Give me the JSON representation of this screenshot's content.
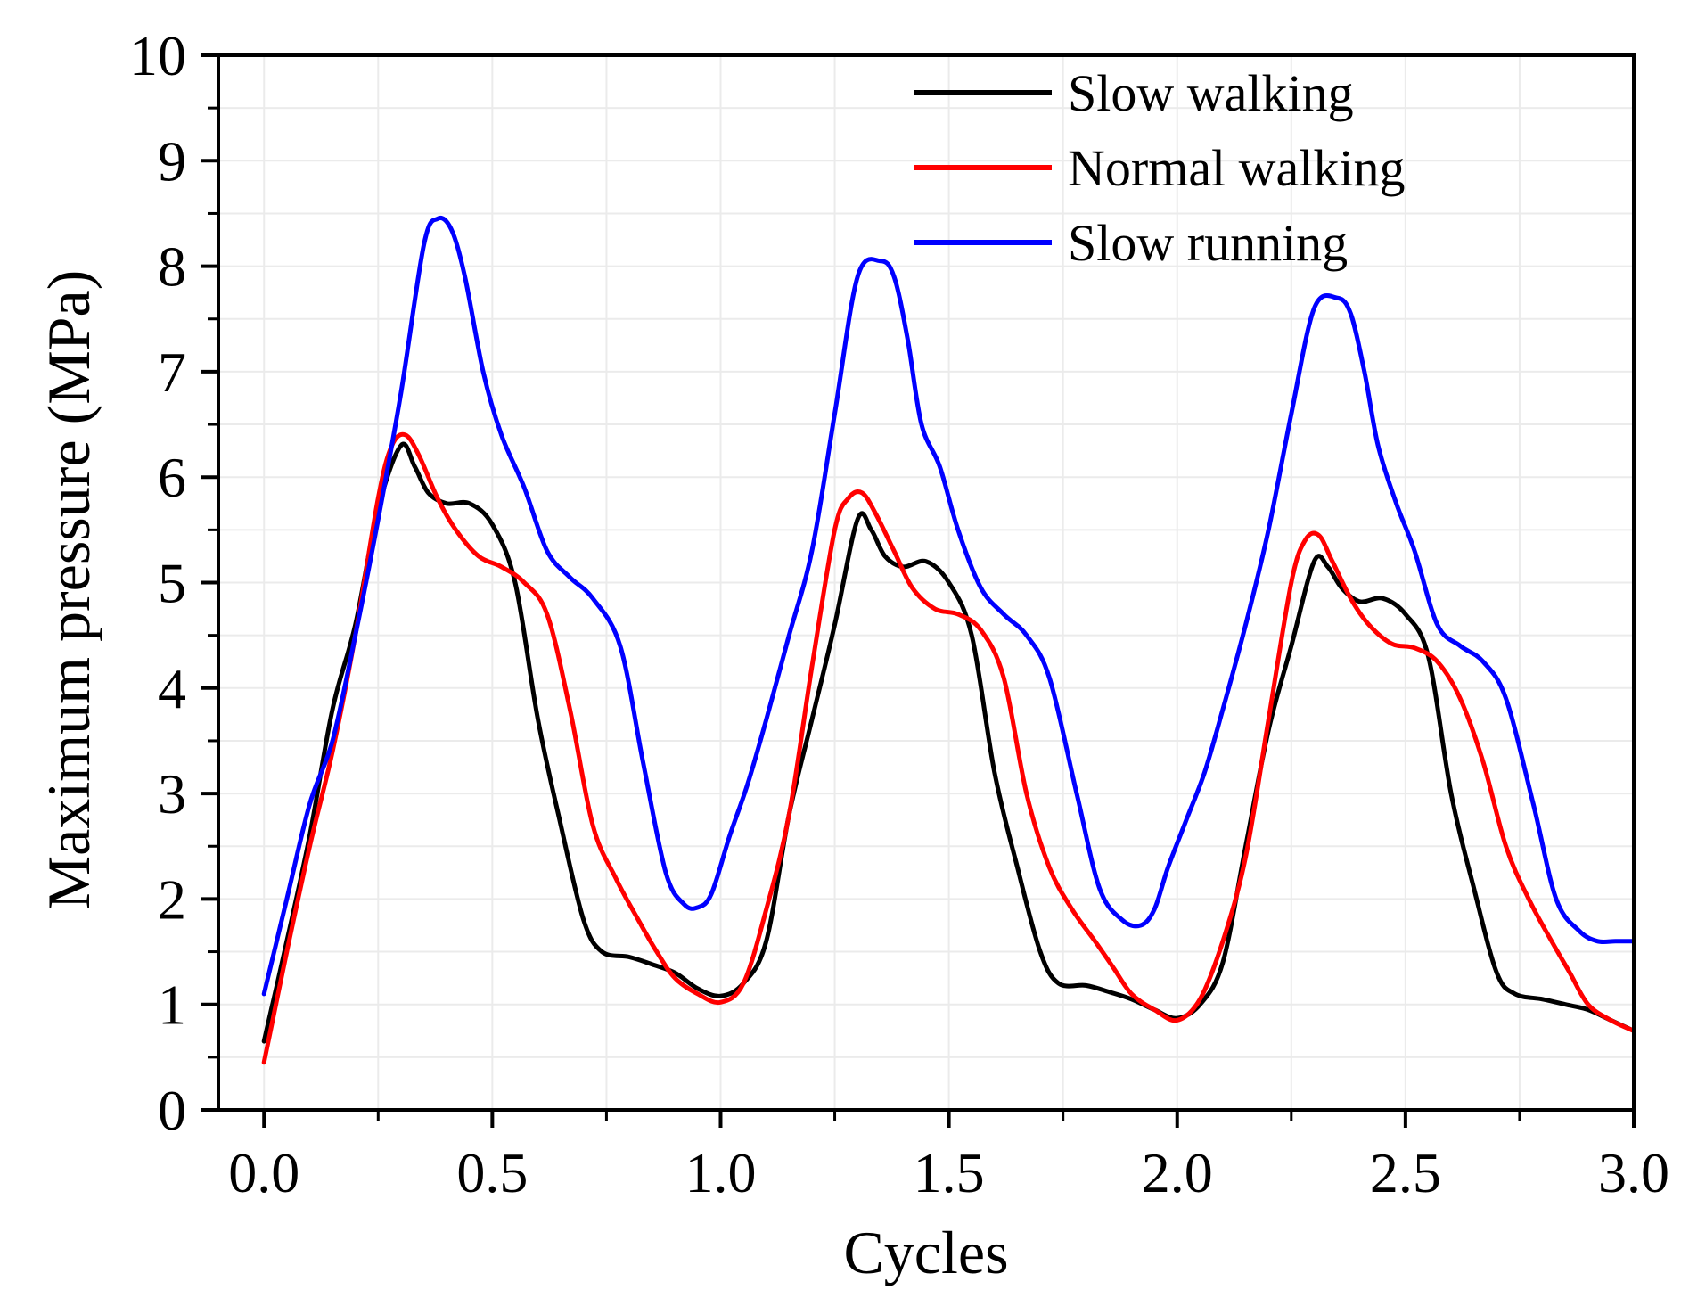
{
  "chart_data": {
    "type": "line",
    "title": "",
    "xlabel": "Cycles",
    "ylabel": "Maximum pressure (MPa)",
    "xlim": [
      -0.1,
      3.0
    ],
    "ylim": [
      0,
      10
    ],
    "xticks": [
      0.0,
      0.5,
      1.0,
      1.5,
      2.0,
      2.5,
      3.0
    ],
    "xtick_labels": [
      "0.0",
      "0.5",
      "1.0",
      "1.5",
      "2.0",
      "2.5",
      "3.0"
    ],
    "yticks": [
      0,
      1,
      2,
      3,
      4,
      5,
      6,
      7,
      8,
      9,
      10
    ],
    "ytick_labels": [
      "0",
      "1",
      "2",
      "3",
      "4",
      "5",
      "6",
      "7",
      "8",
      "9",
      "10"
    ],
    "grid": true,
    "legend_position": "top-right",
    "series": [
      {
        "name": "Slow walking",
        "color": "#000000",
        "x": [
          0.0,
          0.05,
          0.1,
          0.15,
          0.2,
          0.25,
          0.3,
          0.33,
          0.36,
          0.4,
          0.45,
          0.5,
          0.55,
          0.6,
          0.65,
          0.7,
          0.74,
          0.8,
          0.85,
          0.9,
          0.95,
          1.0,
          1.05,
          1.1,
          1.15,
          1.2,
          1.25,
          1.3,
          1.33,
          1.36,
          1.4,
          1.45,
          1.5,
          1.55,
          1.6,
          1.65,
          1.7,
          1.74,
          1.8,
          1.85,
          1.9,
          1.95,
          2.0,
          2.05,
          2.1,
          2.15,
          2.2,
          2.25,
          2.3,
          2.33,
          2.36,
          2.4,
          2.45,
          2.5,
          2.55,
          2.6,
          2.65,
          2.7,
          2.74,
          2.8,
          2.85,
          2.9,
          2.95,
          3.0
        ],
        "values": [
          0.65,
          1.6,
          2.6,
          3.8,
          4.6,
          5.7,
          6.3,
          6.1,
          5.85,
          5.75,
          5.75,
          5.55,
          5.0,
          3.7,
          2.7,
          1.8,
          1.5,
          1.45,
          1.38,
          1.3,
          1.15,
          1.08,
          1.2,
          1.6,
          2.8,
          3.7,
          4.6,
          5.6,
          5.5,
          5.25,
          5.15,
          5.2,
          5.0,
          4.5,
          3.2,
          2.3,
          1.5,
          1.2,
          1.18,
          1.12,
          1.05,
          0.95,
          0.87,
          1.0,
          1.4,
          2.5,
          3.6,
          4.4,
          5.2,
          5.15,
          4.95,
          4.82,
          4.85,
          4.7,
          4.3,
          3.0,
          2.1,
          1.3,
          1.1,
          1.05,
          1.0,
          0.95,
          0.85,
          0.75
        ]
      },
      {
        "name": "Normal walking",
        "color": "#ff0000",
        "x": [
          0.0,
          0.05,
          0.1,
          0.15,
          0.2,
          0.25,
          0.28,
          0.31,
          0.34,
          0.38,
          0.42,
          0.47,
          0.52,
          0.57,
          0.62,
          0.67,
          0.72,
          0.77,
          0.82,
          0.86,
          0.9,
          0.95,
          1.0,
          1.05,
          1.1,
          1.15,
          1.2,
          1.25,
          1.28,
          1.31,
          1.34,
          1.38,
          1.42,
          1.47,
          1.52,
          1.57,
          1.62,
          1.67,
          1.72,
          1.77,
          1.82,
          1.86,
          1.9,
          1.95,
          2.0,
          2.05,
          2.1,
          2.15,
          2.2,
          2.25,
          2.28,
          2.31,
          2.34,
          2.38,
          2.42,
          2.47,
          2.52,
          2.57,
          2.62,
          2.67,
          2.72,
          2.77,
          2.82,
          2.86,
          2.9,
          2.95,
          3.0
        ],
        "values": [
          0.45,
          1.5,
          2.5,
          3.4,
          4.5,
          5.8,
          6.3,
          6.4,
          6.2,
          5.8,
          5.5,
          5.25,
          5.15,
          5.0,
          4.7,
          3.8,
          2.7,
          2.2,
          1.8,
          1.5,
          1.25,
          1.1,
          1.02,
          1.2,
          1.9,
          2.8,
          4.2,
          5.5,
          5.8,
          5.85,
          5.65,
          5.3,
          4.95,
          4.75,
          4.7,
          4.55,
          4.1,
          3.0,
          2.3,
          1.9,
          1.6,
          1.35,
          1.1,
          0.95,
          0.85,
          1.05,
          1.6,
          2.4,
          3.7,
          5.0,
          5.4,
          5.45,
          5.2,
          4.85,
          4.6,
          4.42,
          4.38,
          4.25,
          3.9,
          3.3,
          2.5,
          2.0,
          1.6,
          1.3,
          1.0,
          0.85,
          0.75
        ]
      },
      {
        "name": "Slow running",
        "color": "#0000ff",
        "x": [
          0.0,
          0.05,
          0.1,
          0.15,
          0.2,
          0.25,
          0.3,
          0.35,
          0.38,
          0.41,
          0.44,
          0.48,
          0.52,
          0.57,
          0.62,
          0.67,
          0.72,
          0.78,
          0.83,
          0.88,
          0.92,
          0.95,
          0.98,
          1.02,
          1.06,
          1.1,
          1.15,
          1.2,
          1.25,
          1.3,
          1.35,
          1.38,
          1.41,
          1.44,
          1.48,
          1.52,
          1.57,
          1.62,
          1.67,
          1.72,
          1.78,
          1.83,
          1.88,
          1.92,
          1.95,
          1.98,
          2.02,
          2.06,
          2.1,
          2.15,
          2.2,
          2.25,
          2.3,
          2.35,
          2.38,
          2.41,
          2.44,
          2.48,
          2.52,
          2.57,
          2.62,
          2.67,
          2.72,
          2.78,
          2.83,
          2.88,
          2.92,
          2.96,
          3.0
        ],
        "values": [
          1.1,
          2.0,
          2.9,
          3.5,
          4.5,
          5.6,
          6.8,
          8.2,
          8.45,
          8.35,
          7.9,
          7.0,
          6.4,
          5.9,
          5.3,
          5.05,
          4.85,
          4.4,
          3.3,
          2.25,
          1.95,
          1.92,
          2.05,
          2.6,
          3.1,
          3.7,
          4.5,
          5.3,
          6.6,
          7.9,
          8.05,
          7.9,
          7.3,
          6.5,
          6.1,
          5.5,
          4.95,
          4.7,
          4.5,
          4.1,
          3.0,
          2.1,
          1.8,
          1.75,
          1.9,
          2.3,
          2.75,
          3.2,
          3.8,
          4.6,
          5.5,
          6.6,
          7.6,
          7.7,
          7.55,
          7.0,
          6.3,
          5.75,
          5.3,
          4.6,
          4.4,
          4.25,
          3.9,
          2.9,
          2.0,
          1.7,
          1.6,
          1.6,
          1.6
        ]
      }
    ]
  }
}
